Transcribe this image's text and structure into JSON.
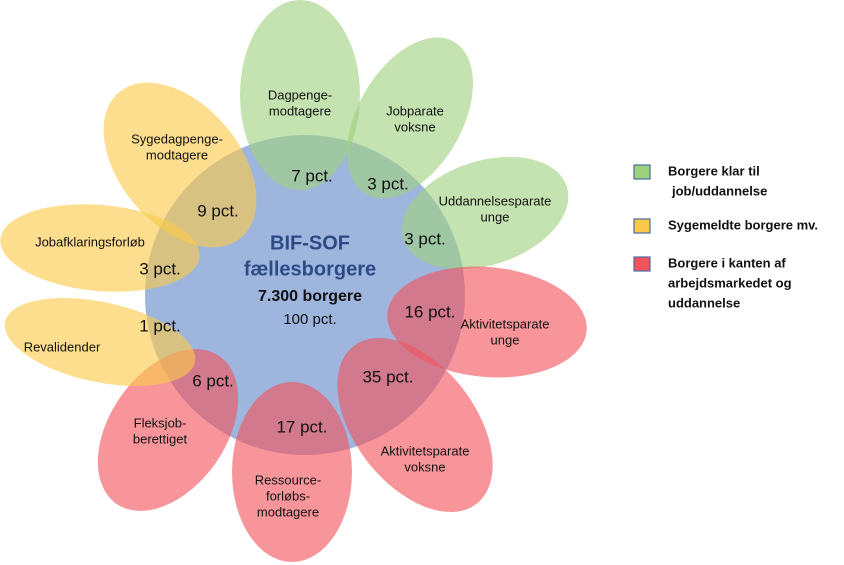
{
  "center": {
    "title": [
      "BIF-SOF",
      "fællesborgere"
    ],
    "count": "7.300 borgere",
    "share": "100 pct."
  },
  "petals": [
    {
      "label": [
        "Dagpenge-",
        "modtagere"
      ],
      "pct": "7 pct.",
      "color": "#9fd27f"
    },
    {
      "label": [
        "Jobparate",
        "voksne"
      ],
      "pct": "3 pct.",
      "color": "#9fd27f"
    },
    {
      "label": [
        "Uddannelsesparate",
        "unge"
      ],
      "pct": "3 pct.",
      "color": "#9fd27f"
    },
    {
      "label": [
        "Aktivitetsparate",
        "unge"
      ],
      "pct": "16 pct.",
      "color": "#f2545e"
    },
    {
      "label": [
        "Aktivitetsparate",
        "voksne"
      ],
      "pct": "35 pct.",
      "color": "#f2545e"
    },
    {
      "label": [
        "Ressource-",
        "forløbs-",
        "modtagere"
      ],
      "pct": "17 pct.",
      "color": "#f2545e"
    },
    {
      "label": [
        "Fleksjob-",
        "berettiget"
      ],
      "pct": "6 pct.",
      "color": "#f2545e"
    },
    {
      "label": [
        "Revalidender"
      ],
      "pct": "1 pct.",
      "color": "#fbc94a"
    },
    {
      "label": [
        "Jobafklaringsforløb"
      ],
      "pct": "3 pct.",
      "color": "#fbc94a"
    },
    {
      "label": [
        "Sygedagpenge-",
        "modtagere"
      ],
      "pct": "9 pct.",
      "color": "#fbc94a"
    }
  ],
  "legend": [
    {
      "label": [
        "Borgere klar til",
        "job/uddannelse"
      ],
      "color": "#9fd27f"
    },
    {
      "label": [
        "Sygemeldte borgere mv."
      ],
      "color": "#fbc94a"
    },
    {
      "label": [
        "Borgere i kanten af",
        "arbejdsmarkedet og",
        "uddannelse"
      ],
      "color": "#f2545e"
    }
  ]
}
